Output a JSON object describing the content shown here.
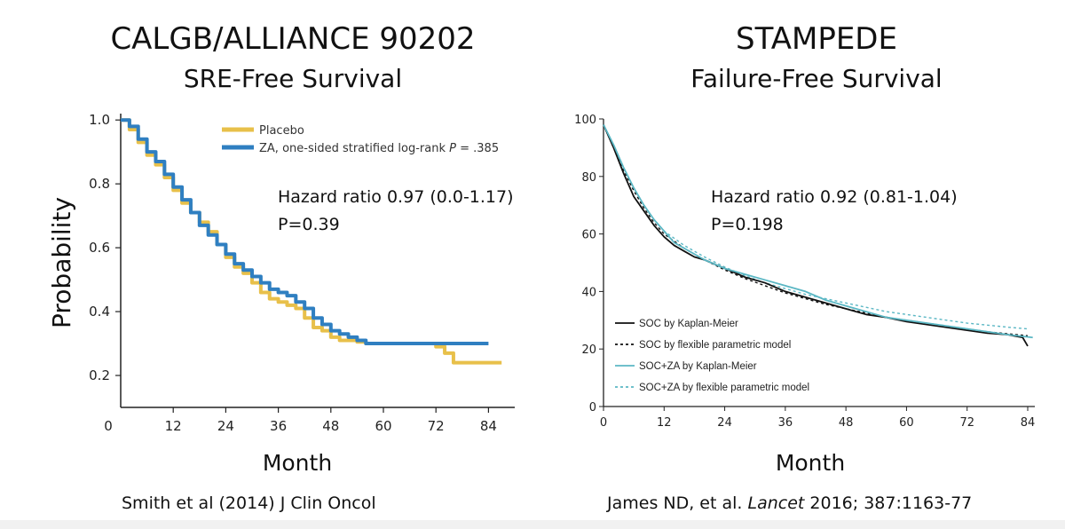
{
  "chart_data": [
    {
      "type": "line",
      "title": "CALGB/ALLIANCE 90202",
      "subtitle": "SRE-Free Survival",
      "xlabel": "Month",
      "ylabel": "Probability",
      "xlim": [
        0,
        90
      ],
      "ylim": [
        0.1,
        1.02
      ],
      "x_ticks": [
        0,
        12,
        24,
        36,
        48,
        60,
        72,
        84
      ],
      "y_ticks": [
        0.2,
        0.4,
        0.6,
        0.8,
        1.0
      ],
      "y_tick_labels": [
        "0.2",
        "0.4",
        "0.6",
        "0.8",
        "1.0"
      ],
      "legend": {
        "position": "top-right",
        "entries": [
          {
            "label": "Placebo",
            "color": "#e8c04a"
          },
          {
            "label": "ZA, one-sided stratified log-rank ",
            "italic": "P",
            "suffix": " = .385",
            "color": "#2f7fc1"
          }
        ]
      },
      "annotation": [
        "Hazard ratio 0.97 (0.0-1.17)",
        "P=0.39"
      ],
      "series": [
        {
          "name": "Placebo",
          "color": "#e8c04a",
          "x": [
            0,
            2,
            4,
            6,
            8,
            10,
            12,
            14,
            16,
            18,
            20,
            22,
            24,
            26,
            28,
            30,
            32,
            34,
            36,
            38,
            40,
            42,
            44,
            46,
            48,
            50,
            52,
            54,
            56,
            60,
            64,
            68,
            72,
            74,
            76,
            80,
            84,
            87
          ],
          "y": [
            1.0,
            0.97,
            0.93,
            0.89,
            0.86,
            0.82,
            0.78,
            0.74,
            0.71,
            0.68,
            0.65,
            0.61,
            0.57,
            0.54,
            0.52,
            0.49,
            0.46,
            0.44,
            0.43,
            0.42,
            0.41,
            0.38,
            0.35,
            0.34,
            0.32,
            0.31,
            0.31,
            0.305,
            0.3,
            0.3,
            0.3,
            0.3,
            0.29,
            0.27,
            0.24,
            0.24,
            0.24,
            0.24
          ]
        },
        {
          "name": "ZA, one-sided stratified log-rank P = .385",
          "color": "#2f7fc1",
          "x": [
            0,
            2,
            4,
            6,
            8,
            10,
            12,
            14,
            16,
            18,
            20,
            22,
            24,
            26,
            28,
            30,
            32,
            34,
            36,
            38,
            40,
            42,
            44,
            46,
            48,
            50,
            52,
            54,
            56,
            60,
            64,
            68,
            72,
            76,
            80,
            84
          ],
          "y": [
            1.0,
            0.98,
            0.94,
            0.9,
            0.87,
            0.83,
            0.79,
            0.75,
            0.71,
            0.67,
            0.64,
            0.61,
            0.58,
            0.55,
            0.53,
            0.51,
            0.49,
            0.47,
            0.46,
            0.45,
            0.43,
            0.41,
            0.38,
            0.36,
            0.34,
            0.33,
            0.32,
            0.31,
            0.3,
            0.3,
            0.3,
            0.3,
            0.3,
            0.3,
            0.3,
            0.3
          ]
        }
      ],
      "citation": "Smith et al (2014) J Clin Oncol"
    },
    {
      "type": "line",
      "title": "STAMPEDE",
      "subtitle": "Failure-Free Survival",
      "xlabel": "Month",
      "ylabel": "",
      "xlim": [
        0,
        85
      ],
      "ylim": [
        0,
        100
      ],
      "x_ticks": [
        0,
        12,
        24,
        36,
        48,
        60,
        72,
        84
      ],
      "y_ticks": [
        0,
        20,
        40,
        60,
        80,
        100
      ],
      "legend": {
        "position": "bottom-left",
        "entries": [
          {
            "label": "SOC by Kaplan-Meier",
            "color": "#111111",
            "dash": false
          },
          {
            "label": "SOC by flexible parametric model",
            "color": "#111111",
            "dash": true
          },
          {
            "label": "SOC+ZA by Kaplan-Meier",
            "color": "#5bb7c4",
            "dash": false
          },
          {
            "label": "SOC+ZA by flexible parametric model",
            "color": "#5bb7c4",
            "dash": true
          }
        ]
      },
      "annotation": [
        "Hazard ratio 0.92 (0.81-1.04)",
        "P=0.198"
      ],
      "series": [
        {
          "name": "SOC by Kaplan-Meier",
          "color": "#111111",
          "dash": false,
          "x": [
            0,
            2,
            4,
            6,
            8,
            10,
            12,
            14,
            16,
            18,
            20,
            24,
            28,
            32,
            36,
            40,
            44,
            48,
            52,
            56,
            60,
            64,
            68,
            72,
            76,
            80,
            83,
            84
          ],
          "y": [
            98,
            90,
            81,
            73,
            68,
            63,
            59,
            56,
            54,
            52,
            51,
            48,
            45,
            43,
            40,
            38,
            36,
            34,
            32,
            31,
            29.5,
            28.5,
            27.5,
            26.5,
            25.5,
            25,
            24,
            21
          ]
        },
        {
          "name": "SOC by flexible parametric model",
          "color": "#111111",
          "dash": true,
          "x": [
            0,
            2,
            4,
            6,
            8,
            10,
            12,
            16,
            20,
            24,
            28,
            32,
            36,
            40,
            44,
            48,
            52,
            56,
            60,
            64,
            68,
            72,
            76,
            80,
            84
          ],
          "y": [
            98,
            90,
            82,
            75,
            69,
            64,
            60,
            55,
            51,
            47.5,
            44.5,
            42,
            39.5,
            37.5,
            35.5,
            34,
            32.5,
            31,
            30,
            29,
            28,
            27,
            26,
            25.3,
            24.6
          ]
        },
        {
          "name": "SOC+ZA by Kaplan-Meier",
          "color": "#5bb7c4",
          "dash": false,
          "x": [
            0,
            2,
            4,
            6,
            8,
            10,
            12,
            14,
            16,
            18,
            20,
            24,
            28,
            32,
            36,
            40,
            44,
            48,
            52,
            56,
            60,
            64,
            68,
            72,
            76,
            80,
            85
          ],
          "y": [
            98,
            91,
            83,
            76,
            70,
            65,
            61,
            57,
            55,
            53,
            51,
            48,
            46,
            44,
            42,
            40,
            37,
            35,
            33,
            31,
            30,
            29,
            28,
            27,
            26,
            25,
            24
          ]
        },
        {
          "name": "SOC+ZA by flexible parametric model",
          "color": "#5bb7c4",
          "dash": true,
          "x": [
            0,
            2,
            4,
            6,
            8,
            10,
            12,
            16,
            20,
            24,
            28,
            32,
            36,
            40,
            44,
            48,
            52,
            56,
            60,
            64,
            68,
            72,
            76,
            80,
            84
          ],
          "y": [
            98,
            91,
            83,
            76,
            70,
            65,
            61,
            56,
            52,
            48.5,
            45.5,
            43,
            41,
            39,
            37.5,
            36,
            34.5,
            33,
            32,
            31,
            30,
            29,
            28.3,
            27.6,
            27
          ]
        }
      ],
      "citation_parts": [
        "James ND, et al. ",
        "Lancet",
        " 2016; 387:1163-77"
      ]
    }
  ]
}
